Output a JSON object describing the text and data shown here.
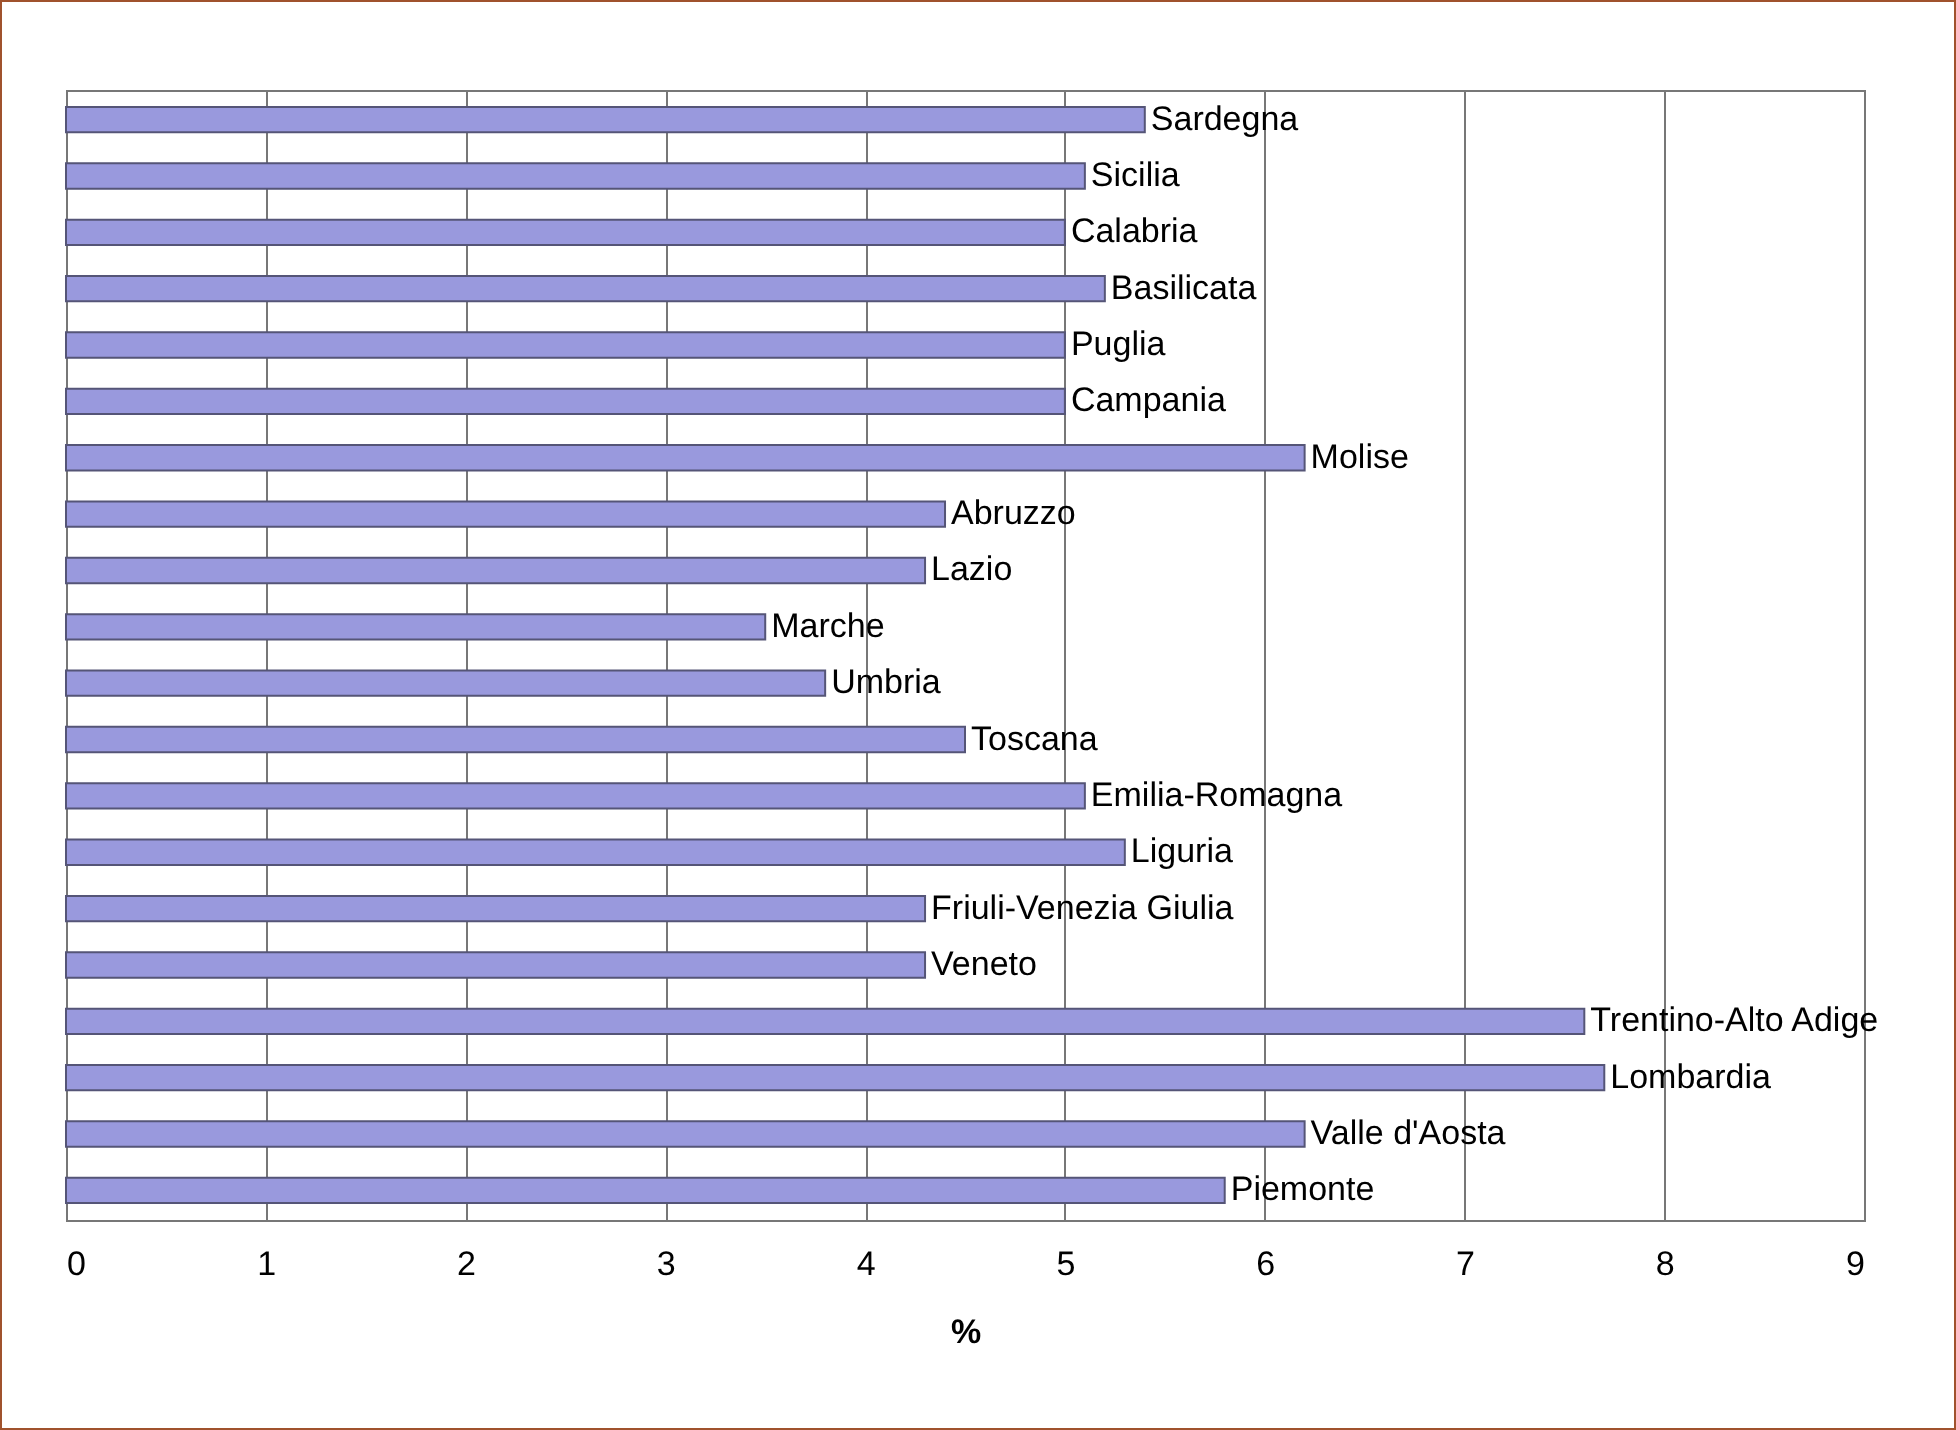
{
  "chart_data": {
    "type": "bar",
    "orientation": "horizontal",
    "xlabel": "%",
    "categories": [
      "Sardegna",
      "Sicilia",
      "Calabria",
      "Basilicata",
      "Puglia",
      "Campania",
      "Molise",
      "Abruzzo",
      "Lazio",
      "Marche",
      "Umbria",
      "Toscana",
      "Emilia-Romagna",
      "Liguria",
      "Friuli-Venezia Giulia",
      "Veneto",
      "Trentino-Alto Adige",
      "Lombardia",
      "Valle d'Aosta",
      "Piemonte"
    ],
    "values": [
      5.4,
      5.1,
      5.0,
      5.2,
      5.0,
      5.0,
      6.2,
      4.4,
      4.3,
      3.5,
      3.8,
      4.5,
      5.1,
      5.3,
      4.3,
      4.3,
      7.6,
      7.7,
      6.2,
      5.8
    ],
    "color": "#9999dd",
    "xlim": [
      0,
      9
    ],
    "xticks": [
      0,
      1,
      2,
      3,
      4,
      5,
      6,
      7,
      8,
      9
    ],
    "grid": "x",
    "tick_labels": "x"
  }
}
